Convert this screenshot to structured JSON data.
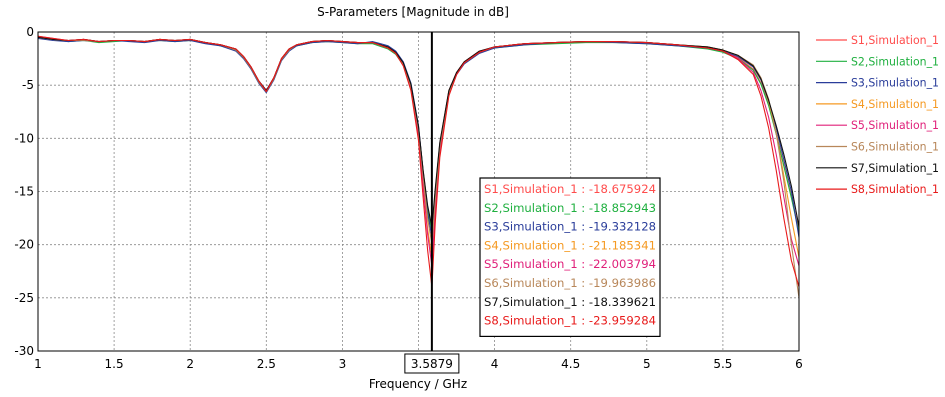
{
  "chart_data": {
    "type": "line",
    "title": "S-Parameters [Magnitude in dB]",
    "xlabel": "Frequency / GHz",
    "ylabel": "",
    "xlim": [
      1,
      6
    ],
    "ylim": [
      -30,
      0
    ],
    "x_ticks": [
      "1",
      "1.5",
      "2",
      "2.5",
      "3",
      "3.5",
      "4",
      "4.5",
      "5",
      "5.5",
      "6"
    ],
    "y_ticks": [
      "0",
      "-5",
      "-10",
      "-15",
      "-20",
      "-25",
      "-30"
    ],
    "grid": true,
    "legend_position": "right",
    "marker": {
      "x": 3.5879,
      "label": "3.5879"
    },
    "x": [
      1.0,
      1.1,
      1.2,
      1.3,
      1.4,
      1.5,
      1.6,
      1.7,
      1.8,
      1.9,
      2.0,
      2.1,
      2.2,
      2.3,
      2.35,
      2.4,
      2.45,
      2.5,
      2.55,
      2.6,
      2.65,
      2.7,
      2.8,
      2.9,
      3.0,
      3.1,
      3.2,
      3.3,
      3.35,
      3.4,
      3.45,
      3.5,
      3.53,
      3.56,
      3.5879,
      3.61,
      3.64,
      3.7,
      3.75,
      3.8,
      3.9,
      4.0,
      4.2,
      4.4,
      4.6,
      4.8,
      5.0,
      5.2,
      5.4,
      5.5,
      5.6,
      5.7,
      5.75,
      5.8,
      5.85,
      5.9,
      5.95,
      6.0
    ],
    "series": [
      {
        "name": "S1,Simulation_1",
        "color": "#ff4c4c",
        "values": [
          -0.4,
          -0.7,
          -0.8,
          -0.7,
          -0.9,
          -0.8,
          -0.8,
          -0.9,
          -0.7,
          -0.8,
          -0.7,
          -1.0,
          -1.2,
          -1.6,
          -2.3,
          -3.3,
          -4.6,
          -5.5,
          -4.3,
          -2.5,
          -1.6,
          -1.2,
          -0.9,
          -0.8,
          -0.9,
          -1.0,
          -1.0,
          -1.5,
          -2.0,
          -3.0,
          -5.0,
          -9.0,
          -13.0,
          -16.5,
          -18.68,
          -15.0,
          -10.5,
          -5.5,
          -3.8,
          -2.8,
          -1.8,
          -1.4,
          -1.1,
          -1.0,
          -0.9,
          -0.9,
          -1.0,
          -1.2,
          -1.5,
          -1.8,
          -2.4,
          -3.5,
          -4.8,
          -6.8,
          -9.5,
          -12.5,
          -15.5,
          -18.68
        ]
      },
      {
        "name": "S2,Simulation_1",
        "color": "#20b040",
        "values": [
          -0.5,
          -0.7,
          -0.9,
          -0.8,
          -1.0,
          -0.9,
          -0.8,
          -0.9,
          -0.8,
          -0.9,
          -0.8,
          -1.0,
          -1.3,
          -1.7,
          -2.4,
          -3.4,
          -4.7,
          -5.6,
          -4.4,
          -2.6,
          -1.7,
          -1.3,
          -1.0,
          -0.9,
          -1.0,
          -1.1,
          -1.1,
          -1.6,
          -2.1,
          -3.1,
          -5.1,
          -9.1,
          -13.1,
          -16.7,
          -18.85,
          -15.1,
          -10.6,
          -5.6,
          -3.9,
          -2.9,
          -1.9,
          -1.5,
          -1.2,
          -1.1,
          -1.0,
          -1.0,
          -1.1,
          -1.3,
          -1.6,
          -1.9,
          -2.5,
          -3.6,
          -4.9,
          -6.9,
          -9.6,
          -12.6,
          -15.6,
          -18.85
        ]
      },
      {
        "name": "S3,Simulation_1",
        "color": "#2a3d9a",
        "values": [
          -0.6,
          -0.8,
          -0.9,
          -0.8,
          -0.9,
          -0.8,
          -0.9,
          -1.0,
          -0.8,
          -0.9,
          -0.8,
          -1.1,
          -1.3,
          -1.8,
          -2.5,
          -3.5,
          -4.8,
          -5.7,
          -4.5,
          -2.7,
          -1.8,
          -1.3,
          -1.0,
          -0.9,
          -1.0,
          -1.1,
          -0.9,
          -1.3,
          -1.8,
          -2.8,
          -4.8,
          -8.8,
          -13.2,
          -17.0,
          -19.33,
          -15.5,
          -10.8,
          -5.8,
          -4.0,
          -3.0,
          -2.0,
          -1.5,
          -1.2,
          -1.0,
          -0.9,
          -1.0,
          -1.1,
          -1.3,
          -1.5,
          -1.8,
          -2.3,
          -3.3,
          -4.5,
          -6.5,
          -9.0,
          -12.0,
          -15.0,
          -19.33
        ]
      },
      {
        "name": "S4,Simulation_1",
        "color": "#f59a23",
        "values": [
          -0.5,
          -0.7,
          -0.8,
          -0.7,
          -0.9,
          -0.8,
          -0.8,
          -0.9,
          -0.7,
          -0.8,
          -0.7,
          -1.0,
          -1.2,
          -1.6,
          -2.3,
          -3.3,
          -4.6,
          -5.6,
          -4.3,
          -2.5,
          -1.6,
          -1.2,
          -0.9,
          -0.8,
          -0.9,
          -1.0,
          -1.0,
          -1.5,
          -2.0,
          -3.1,
          -5.2,
          -9.5,
          -14.0,
          -18.5,
          -21.19,
          -16.5,
          -11.0,
          -5.8,
          -3.9,
          -2.9,
          -1.9,
          -1.4,
          -1.1,
          -1.0,
          -0.9,
          -0.9,
          -1.0,
          -1.2,
          -1.4,
          -1.7,
          -2.2,
          -3.2,
          -4.4,
          -6.5,
          -9.5,
          -13.5,
          -17.5,
          -21.19
        ]
      },
      {
        "name": "S5,Simulation_1",
        "color": "#e0207a",
        "values": [
          -0.4,
          -0.6,
          -0.8,
          -0.7,
          -0.9,
          -0.8,
          -0.8,
          -0.9,
          -0.7,
          -0.8,
          -0.7,
          -1.0,
          -1.2,
          -1.6,
          -2.3,
          -3.3,
          -4.6,
          -5.5,
          -4.3,
          -2.5,
          -1.6,
          -1.2,
          -0.9,
          -0.8,
          -0.9,
          -1.0,
          -1.0,
          -1.5,
          -2.0,
          -3.1,
          -5.3,
          -9.8,
          -14.5,
          -19.0,
          -22.0,
          -17.0,
          -11.2,
          -5.9,
          -4.0,
          -2.9,
          -1.9,
          -1.4,
          -1.1,
          -1.0,
          -0.9,
          -0.9,
          -1.0,
          -1.2,
          -1.5,
          -1.8,
          -2.5,
          -3.8,
          -5.5,
          -8.0,
          -11.5,
          -15.5,
          -19.5,
          -22.0
        ]
      },
      {
        "name": "S6,Simulation_1",
        "color": "#b8875a",
        "values": [
          -0.5,
          -0.7,
          -0.8,
          -0.8,
          -0.9,
          -0.8,
          -0.8,
          -0.9,
          -0.7,
          -0.8,
          -0.7,
          -1.0,
          -1.2,
          -1.7,
          -2.4,
          -3.4,
          -4.7,
          -5.6,
          -4.4,
          -2.6,
          -1.7,
          -1.2,
          -0.9,
          -0.8,
          -0.9,
          -1.0,
          -1.0,
          -1.5,
          -2.0,
          -3.0,
          -5.1,
          -9.2,
          -13.5,
          -17.5,
          -19.96,
          -15.8,
          -10.8,
          -5.7,
          -3.9,
          -2.9,
          -1.9,
          -1.4,
          -1.1,
          -1.0,
          -0.9,
          -0.9,
          -1.0,
          -1.2,
          -1.4,
          -1.7,
          -2.2,
          -3.1,
          -4.3,
          -6.3,
          -9.5,
          -14.0,
          -20.0,
          -25.0
        ]
      },
      {
        "name": "S7,Simulation_1",
        "color": "#111111",
        "values": [
          -0.5,
          -0.7,
          -0.8,
          -0.7,
          -0.9,
          -0.8,
          -0.8,
          -0.9,
          -0.7,
          -0.8,
          -0.7,
          -1.0,
          -1.2,
          -1.6,
          -2.3,
          -3.3,
          -4.6,
          -5.5,
          -4.3,
          -2.5,
          -1.6,
          -1.2,
          -0.9,
          -0.8,
          -0.9,
          -1.0,
          -1.0,
          -1.4,
          -1.9,
          -2.9,
          -4.9,
          -8.9,
          -13.0,
          -16.3,
          -18.34,
          -14.8,
          -10.4,
          -5.5,
          -3.8,
          -2.8,
          -1.8,
          -1.4,
          -1.1,
          -1.0,
          -0.9,
          -0.9,
          -1.0,
          -1.2,
          -1.4,
          -1.7,
          -2.2,
          -3.2,
          -4.4,
          -6.4,
          -8.8,
          -11.5,
          -14.5,
          -18.34
        ]
      },
      {
        "name": "S8,Simulation_1",
        "color": "#e81a1a",
        "values": [
          -0.4,
          -0.6,
          -0.8,
          -0.7,
          -0.9,
          -0.8,
          -0.8,
          -0.9,
          -0.7,
          -0.8,
          -0.7,
          -1.0,
          -1.2,
          -1.6,
          -2.3,
          -3.3,
          -4.6,
          -5.6,
          -4.3,
          -2.5,
          -1.6,
          -1.2,
          -0.9,
          -0.8,
          -0.9,
          -1.0,
          -1.0,
          -1.5,
          -2.0,
          -3.2,
          -5.5,
          -10.2,
          -15.5,
          -20.5,
          -23.96,
          -18.0,
          -11.8,
          -6.0,
          -4.0,
          -2.9,
          -1.9,
          -1.4,
          -1.1,
          -1.0,
          -0.9,
          -0.9,
          -1.0,
          -1.2,
          -1.5,
          -1.8,
          -2.6,
          -4.0,
          -6.0,
          -9.0,
          -13.0,
          -17.5,
          -21.5,
          -23.96
        ]
      }
    ],
    "annotations": [
      {
        "label": "S1,Simulation_1 : -18.675924",
        "color": "#ff4c4c"
      },
      {
        "label": "S2,Simulation_1 : -18.852943",
        "color": "#20b040"
      },
      {
        "label": "S3,Simulation_1 : -19.332128",
        "color": "#2a3d9a"
      },
      {
        "label": "S4,Simulation_1 : -21.185341",
        "color": "#f59a23"
      },
      {
        "label": "S5,Simulation_1 : -22.003794",
        "color": "#e0207a"
      },
      {
        "label": "S6,Simulation_1 : -19.963986",
        "color": "#b8875a"
      },
      {
        "label": "S7,Simulation_1 : -18.339621",
        "color": "#111111"
      },
      {
        "label": "S8,Simulation_1 : -23.959284",
        "color": "#e81a1a"
      }
    ]
  }
}
